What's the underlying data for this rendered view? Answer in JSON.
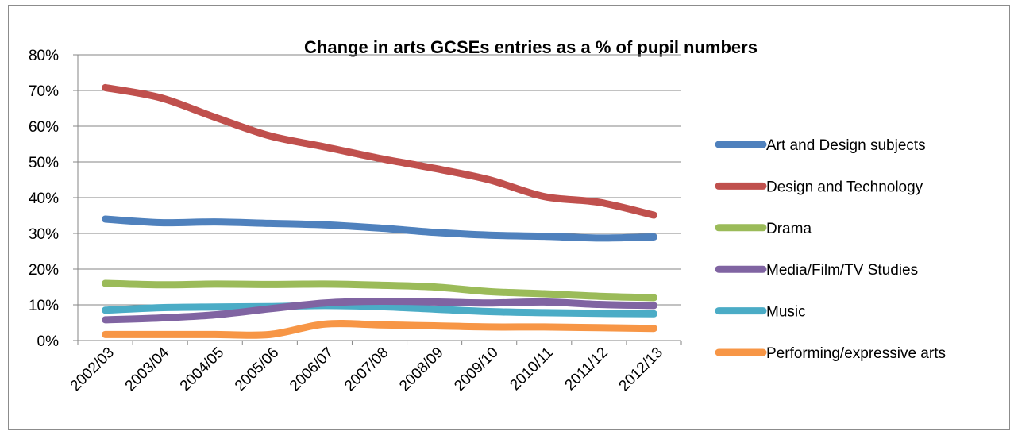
{
  "chart_data": {
    "type": "line",
    "title": "Change in arts GCSEs entries as a % of pupil numbers",
    "xlabel": "",
    "ylabel": "",
    "categories": [
      "2002/03",
      "2003/04",
      "2004/05",
      "2005/06",
      "2006/07",
      "2007/08",
      "2008/09",
      "2009/10",
      "2010/11",
      "2011/12",
      "2012/13"
    ],
    "y_ticks": [
      "0%",
      "10%",
      "20%",
      "30%",
      "40%",
      "50%",
      "60%",
      "70%",
      "80%"
    ],
    "ylim": [
      0,
      80
    ],
    "grid": true,
    "legend_position": "right",
    "series": [
      {
        "name": "Art and Design subjects",
        "color": "#4f81bd",
        "values": [
          34,
          33,
          33.2,
          32.8,
          32.4,
          31.5,
          30.3,
          29.5,
          29.2,
          28.7,
          29
        ]
      },
      {
        "name": "Design and Technology",
        "color": "#c0504d",
        "values": [
          70.8,
          68,
          62.5,
          57.3,
          54.2,
          51,
          48.2,
          45,
          40.3,
          38.7,
          35.1
        ]
      },
      {
        "name": "Drama",
        "color": "#9bbb59",
        "values": [
          16,
          15.6,
          15.8,
          15.7,
          15.8,
          15.5,
          15,
          13.7,
          13.1,
          12.4,
          12
        ]
      },
      {
        "name": "Media/Film/TV Studies",
        "color": "#8064a2",
        "values": [
          5.8,
          6.3,
          7.2,
          8.9,
          10.5,
          11,
          10.8,
          10.5,
          10.8,
          10.1,
          9.8
        ]
      },
      {
        "name": "Music",
        "color": "#4bacc6",
        "values": [
          8.5,
          9.2,
          9.4,
          9.5,
          9.8,
          9.5,
          8.8,
          8.1,
          7.8,
          7.6,
          7.5
        ]
      },
      {
        "name": "Performing/expressive arts",
        "color": "#f79646",
        "values": [
          1.7,
          1.7,
          1.7,
          1.7,
          4.6,
          4.4,
          4.1,
          3.8,
          3.8,
          3.6,
          3.4
        ]
      }
    ]
  }
}
